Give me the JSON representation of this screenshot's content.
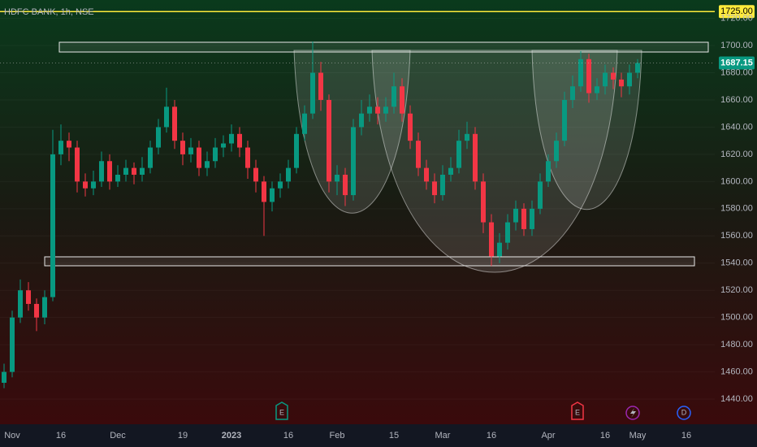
{
  "chart_data": {
    "type": "candlestick",
    "title": "HDFC BANK, 1h, NSE",
    "categories": [
      null,
      "Nov",
      null,
      null,
      null,
      null,
      null,
      "16",
      null,
      null,
      null,
      null,
      null,
      null,
      "Dec",
      null,
      null,
      null,
      null,
      null,
      null,
      null,
      "19",
      null,
      null,
      null,
      null,
      null,
      "2023",
      null,
      null,
      null,
      null,
      null,
      null,
      "16",
      null,
      null,
      null,
      null,
      null,
      "Feb",
      null,
      null,
      null,
      null,
      null,
      null,
      "15",
      null,
      null,
      null,
      null,
      null,
      "Mar",
      null,
      null,
      null,
      null,
      null,
      "16",
      null,
      null,
      null,
      null,
      null,
      null,
      "Apr",
      null,
      null,
      null,
      null,
      null,
      null,
      "16",
      null,
      null,
      null,
      "May",
      null,
      null,
      null,
      null,
      null,
      "16",
      null,
      null,
      null
    ],
    "ohlc": [
      [
        1452,
        1466,
        1448,
        1460
      ],
      [
        1460,
        1505,
        1456,
        1500
      ],
      [
        1500,
        1528,
        1496,
        1520
      ],
      [
        1520,
        1526,
        1505,
        1510
      ],
      [
        1510,
        1514,
        1490,
        1500
      ],
      [
        1500,
        1520,
        1495,
        1515
      ],
      [
        1515,
        1638,
        1512,
        1620
      ],
      [
        1620,
        1642,
        1612,
        1630
      ],
      [
        1630,
        1636,
        1615,
        1625
      ],
      [
        1625,
        1630,
        1592,
        1600
      ],
      [
        1600,
        1606,
        1589,
        1595
      ],
      [
        1595,
        1608,
        1590,
        1600
      ],
      [
        1600,
        1622,
        1596,
        1615
      ],
      [
        1615,
        1620,
        1594,
        1600
      ],
      [
        1600,
        1612,
        1596,
        1605
      ],
      [
        1605,
        1616,
        1600,
        1610
      ],
      [
        1610,
        1614,
        1598,
        1605
      ],
      [
        1605,
        1618,
        1600,
        1610
      ],
      [
        1610,
        1630,
        1606,
        1625
      ],
      [
        1625,
        1646,
        1620,
        1640
      ],
      [
        1640,
        1669,
        1636,
        1655
      ],
      [
        1655,
        1660,
        1624,
        1630
      ],
      [
        1630,
        1636,
        1612,
        1620
      ],
      [
        1620,
        1632,
        1614,
        1625
      ],
      [
        1625,
        1630,
        1604,
        1610
      ],
      [
        1610,
        1622,
        1604,
        1615
      ],
      [
        1615,
        1632,
        1610,
        1625
      ],
      [
        1625,
        1634,
        1618,
        1628
      ],
      [
        1628,
        1642,
        1622,
        1635
      ],
      [
        1635,
        1640,
        1618,
        1625
      ],
      [
        1625,
        1630,
        1602,
        1610
      ],
      [
        1610,
        1616,
        1592,
        1600
      ],
      [
        1600,
        1604,
        1560,
        1585
      ],
      [
        1585,
        1600,
        1578,
        1595
      ],
      [
        1595,
        1606,
        1588,
        1600
      ],
      [
        1600,
        1616,
        1595,
        1610
      ],
      [
        1610,
        1640,
        1606,
        1635
      ],
      [
        1635,
        1656,
        1630,
        1650
      ],
      [
        1650,
        1703,
        1646,
        1680
      ],
      [
        1680,
        1688,
        1652,
        1660
      ],
      [
        1660,
        1664,
        1592,
        1600
      ],
      [
        1600,
        1612,
        1590,
        1605
      ],
      [
        1605,
        1610,
        1582,
        1590
      ],
      [
        1590,
        1646,
        1586,
        1640
      ],
      [
        1640,
        1660,
        1634,
        1650
      ],
      [
        1650,
        1664,
        1644,
        1655
      ],
      [
        1655,
        1662,
        1642,
        1650
      ],
      [
        1650,
        1662,
        1644,
        1655
      ],
      [
        1655,
        1680,
        1650,
        1670
      ],
      [
        1670,
        1676,
        1644,
        1650
      ],
      [
        1650,
        1656,
        1624,
        1630
      ],
      [
        1630,
        1636,
        1604,
        1610
      ],
      [
        1610,
        1616,
        1594,
        1600
      ],
      [
        1600,
        1606,
        1584,
        1590
      ],
      [
        1590,
        1612,
        1586,
        1605
      ],
      [
        1605,
        1618,
        1600,
        1610
      ],
      [
        1610,
        1638,
        1606,
        1630
      ],
      [
        1630,
        1644,
        1624,
        1635
      ],
      [
        1635,
        1640,
        1594,
        1600
      ],
      [
        1600,
        1606,
        1562,
        1570
      ],
      [
        1570,
        1576,
        1538,
        1545
      ],
      [
        1545,
        1562,
        1540,
        1555
      ],
      [
        1555,
        1576,
        1550,
        1570
      ],
      [
        1570,
        1586,
        1564,
        1580
      ],
      [
        1580,
        1584,
        1560,
        1565
      ],
      [
        1565,
        1586,
        1560,
        1580
      ],
      [
        1580,
        1606,
        1576,
        1600
      ],
      [
        1600,
        1620,
        1596,
        1615
      ],
      [
        1615,
        1636,
        1610,
        1630
      ],
      [
        1630,
        1666,
        1626,
        1660
      ],
      [
        1660,
        1678,
        1654,
        1670
      ],
      [
        1670,
        1696,
        1666,
        1690
      ],
      [
        1690,
        1694,
        1658,
        1665
      ],
      [
        1665,
        1676,
        1660,
        1670
      ],
      [
        1670,
        1686,
        1664,
        1680
      ],
      [
        1680,
        1684,
        1668,
        1675
      ],
      [
        1675,
        1680,
        1662,
        1670
      ],
      [
        1670,
        1686,
        1664,
        1680
      ],
      [
        1680,
        1690,
        1676,
        1687.15
      ],
      null,
      null,
      null,
      null,
      null,
      null,
      null,
      null,
      null
    ],
    "up_color": "#089981",
    "down_color": "#f23645",
    "ylim": [
      1422.7,
      1733.5
    ],
    "yticks": [
      {
        "value": 1440,
        "label": "1440.00"
      },
      {
        "value": 1460,
        "label": "1460.00"
      },
      {
        "value": 1480,
        "label": "1480.00"
      },
      {
        "value": 1500,
        "label": "1500.00"
      },
      {
        "value": 1520,
        "label": "1520.00"
      },
      {
        "value": 1540,
        "label": "1540.00"
      },
      {
        "value": 1560,
        "label": "1560.00"
      },
      {
        "value": 1580,
        "label": "1580.00"
      },
      {
        "value": 1600,
        "label": "1600.00"
      },
      {
        "value": 1620,
        "label": "1620.00"
      },
      {
        "value": 1640,
        "label": "1640.00"
      },
      {
        "value": 1660,
        "label": "1660.00"
      },
      {
        "value": 1680,
        "label": "1680.00"
      },
      {
        "value": 1700,
        "label": "1700.00"
      },
      {
        "value": 1720,
        "label": "1720.00"
      }
    ],
    "hline": {
      "value": 1725,
      "label": "1725.00",
      "color": "#ffeb3b"
    },
    "last_price": 1687.15,
    "events": [
      {
        "label": "E",
        "color": "#089981"
      },
      {
        "label": "E",
        "color": "#f23645"
      },
      {
        "label": "D",
        "color": "#2962ff"
      }
    ]
  }
}
